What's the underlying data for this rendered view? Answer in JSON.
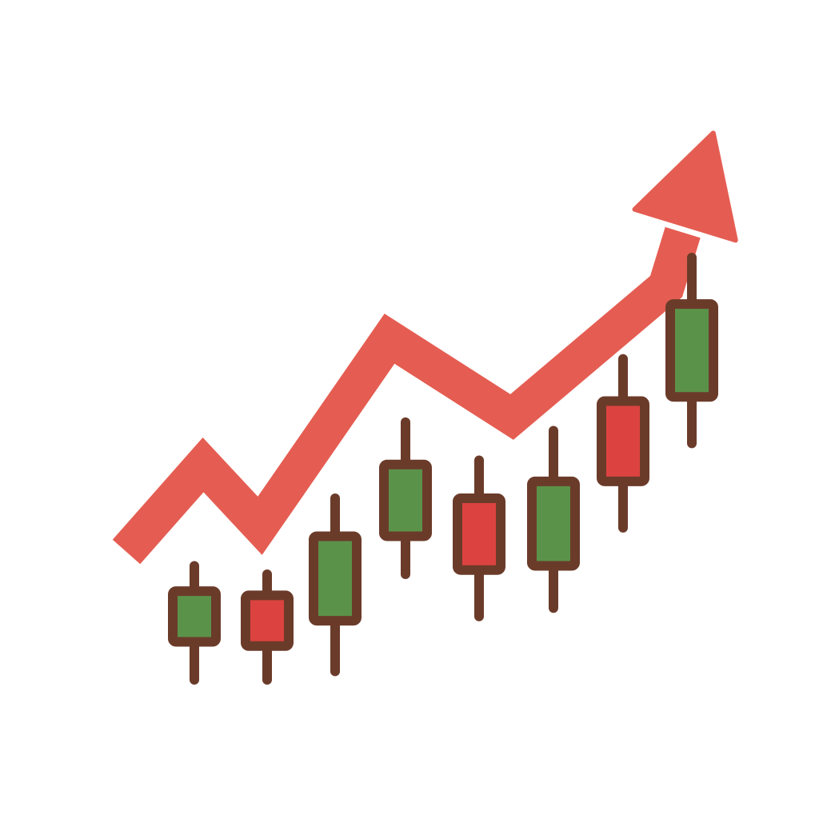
{
  "colors": {
    "background": "#ffffff",
    "trend_arrow": "#e55d52",
    "bullish_body": "#5b9249",
    "bearish_body": "#dc4340",
    "outline": "#6b3b2a"
  },
  "icons": {
    "trend": "upward-trend-arrow-icon"
  },
  "chart_data": {
    "type": "candlestick",
    "title": "",
    "xlabel": "",
    "ylabel": "",
    "axes_visible": false,
    "grid": false,
    "legend": "none",
    "ylim": [
      0,
      100
    ],
    "trend_line": {
      "direction": "up",
      "values": [
        8,
        28,
        14,
        57,
        39,
        69,
        99
      ]
    },
    "candles": [
      {
        "index": 1,
        "direction": "up",
        "open": 9,
        "close": 21,
        "high": 27,
        "low": 0
      },
      {
        "index": 2,
        "direction": "down",
        "open": 20,
        "close": 8,
        "high": 25,
        "low": 0
      },
      {
        "index": 3,
        "direction": "up",
        "open": 14,
        "close": 34,
        "high": 43,
        "low": 2
      },
      {
        "index": 4,
        "direction": "up",
        "open": 34,
        "close": 51,
        "high": 61,
        "low": 25
      },
      {
        "index": 5,
        "direction": "down",
        "open": 43,
        "close": 26,
        "high": 52,
        "low": 15
      },
      {
        "index": 6,
        "direction": "up",
        "open": 27,
        "close": 47,
        "high": 59,
        "low": 17
      },
      {
        "index": 7,
        "direction": "down",
        "open": 66,
        "close": 47,
        "high": 76,
        "low": 36
      },
      {
        "index": 8,
        "direction": "up",
        "open": 67,
        "close": 89,
        "high": 100,
        "low": 56
      }
    ]
  }
}
